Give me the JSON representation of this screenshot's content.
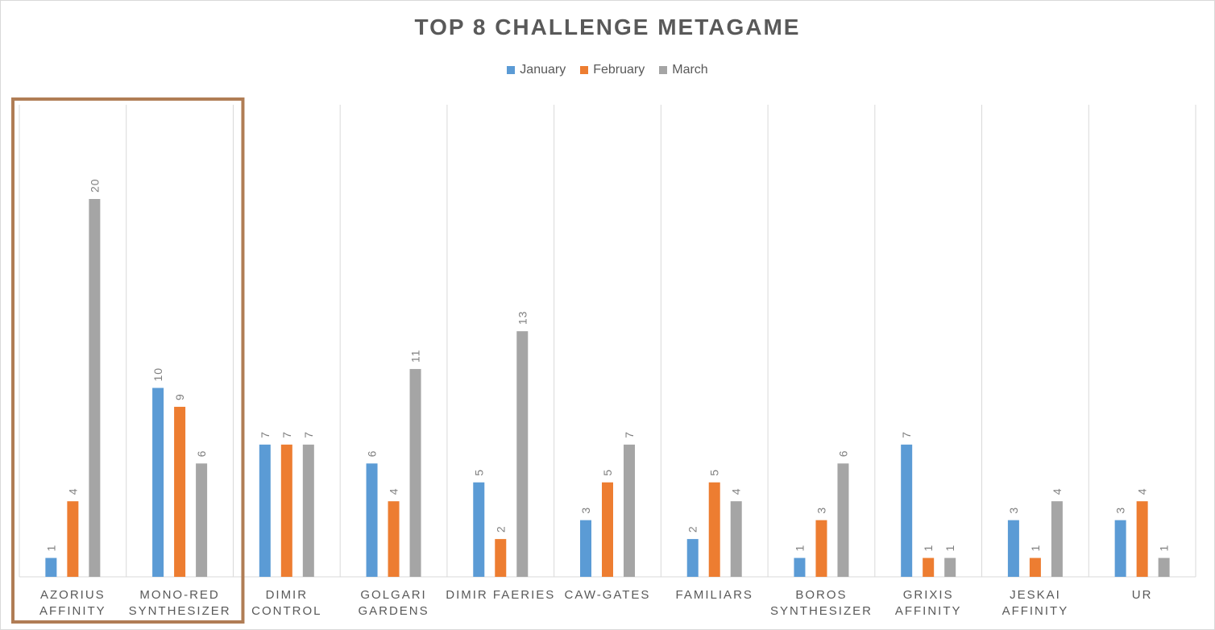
{
  "chart_data": {
    "type": "bar",
    "title": "TOP 8 CHALLENGE  METAGAME",
    "xlabel": "",
    "ylabel": "",
    "ylim": [
      0,
      25
    ],
    "grid": "vertical category separators",
    "legend_position": "top",
    "categories": [
      [
        "AZORIUS",
        "AFFINITY"
      ],
      [
        "MONO-RED",
        "SYNTHESIZER"
      ],
      [
        "DIMIR",
        "CONTROL"
      ],
      [
        "GOLGARI",
        "GARDENS"
      ],
      [
        "DIMIR FAERIES"
      ],
      [
        "CAW-GATES"
      ],
      [
        "FAMILIARS"
      ],
      [
        "BOROS",
        "SYNTHESIZER"
      ],
      [
        "GRIXIS",
        "AFFINITY"
      ],
      [
        "JESKAI",
        "AFFINITY"
      ],
      [
        "UR"
      ]
    ],
    "series": [
      {
        "name": "January",
        "color": "#5b9bd5",
        "values": [
          1,
          10,
          7,
          6,
          5,
          3,
          2,
          1,
          7,
          3,
          3
        ]
      },
      {
        "name": "February",
        "color": "#ed7d31",
        "values": [
          4,
          9,
          7,
          4,
          2,
          5,
          5,
          3,
          1,
          1,
          4
        ]
      },
      {
        "name": "March",
        "color": "#a5a5a5",
        "values": [
          20,
          6,
          7,
          11,
          13,
          7,
          4,
          6,
          1,
          4,
          1
        ]
      }
    ],
    "highlight": {
      "categories": [
        0,
        1
      ],
      "color": "#b07d55"
    }
  }
}
